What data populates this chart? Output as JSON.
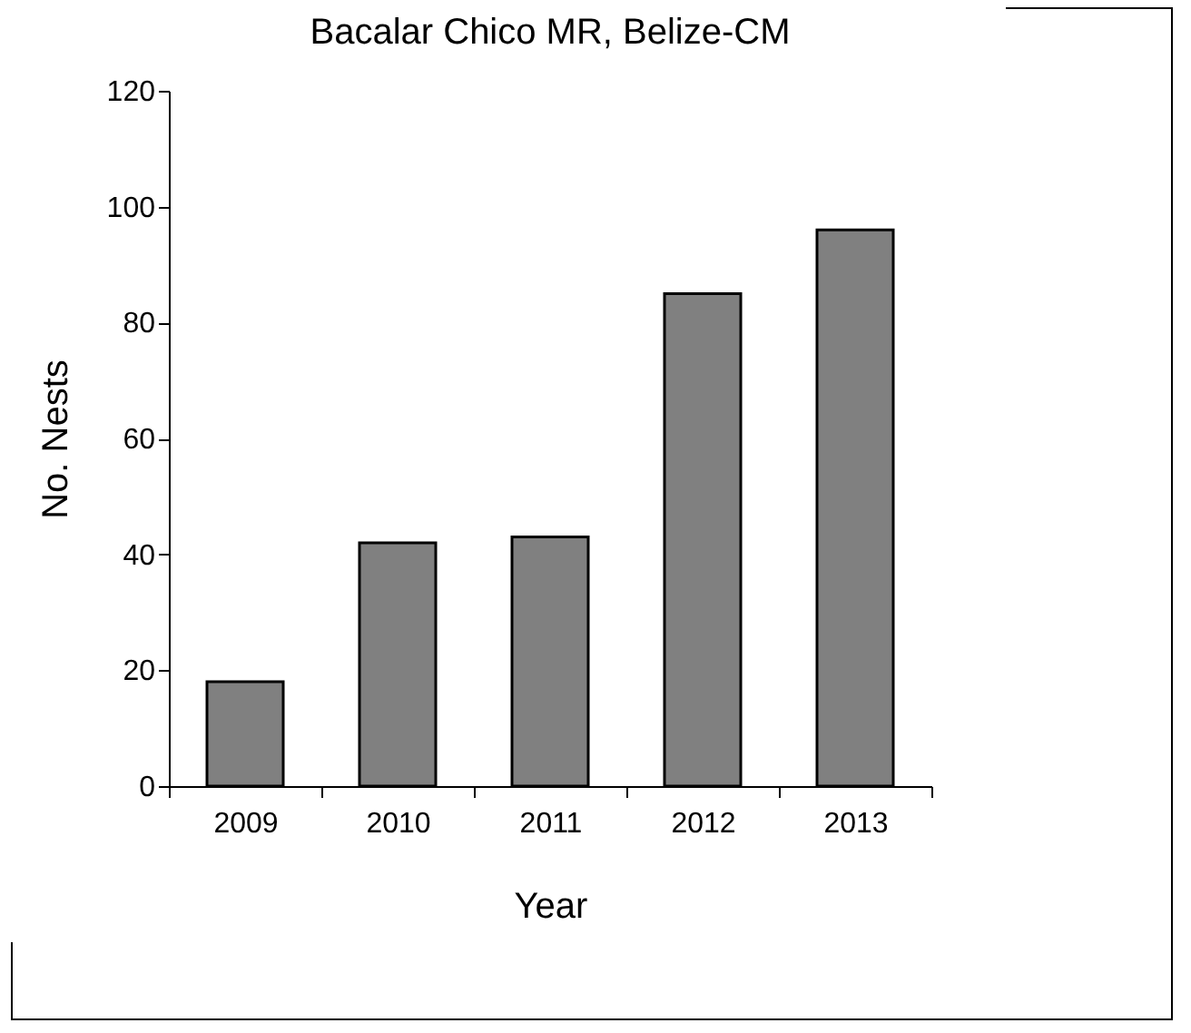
{
  "chart_data": {
    "type": "bar",
    "title": "Bacalar Chico MR, Belize-CM",
    "xlabel": "Year",
    "ylabel": "No. Nests",
    "categories": [
      "2009",
      "2010",
      "2011",
      "2012",
      "2013"
    ],
    "values": [
      18,
      42,
      43,
      85,
      96
    ],
    "color": "#808080",
    "ylim": [
      0,
      120
    ],
    "yticks": [
      0,
      20,
      40,
      60,
      80,
      100,
      120
    ],
    "grid": false
  }
}
